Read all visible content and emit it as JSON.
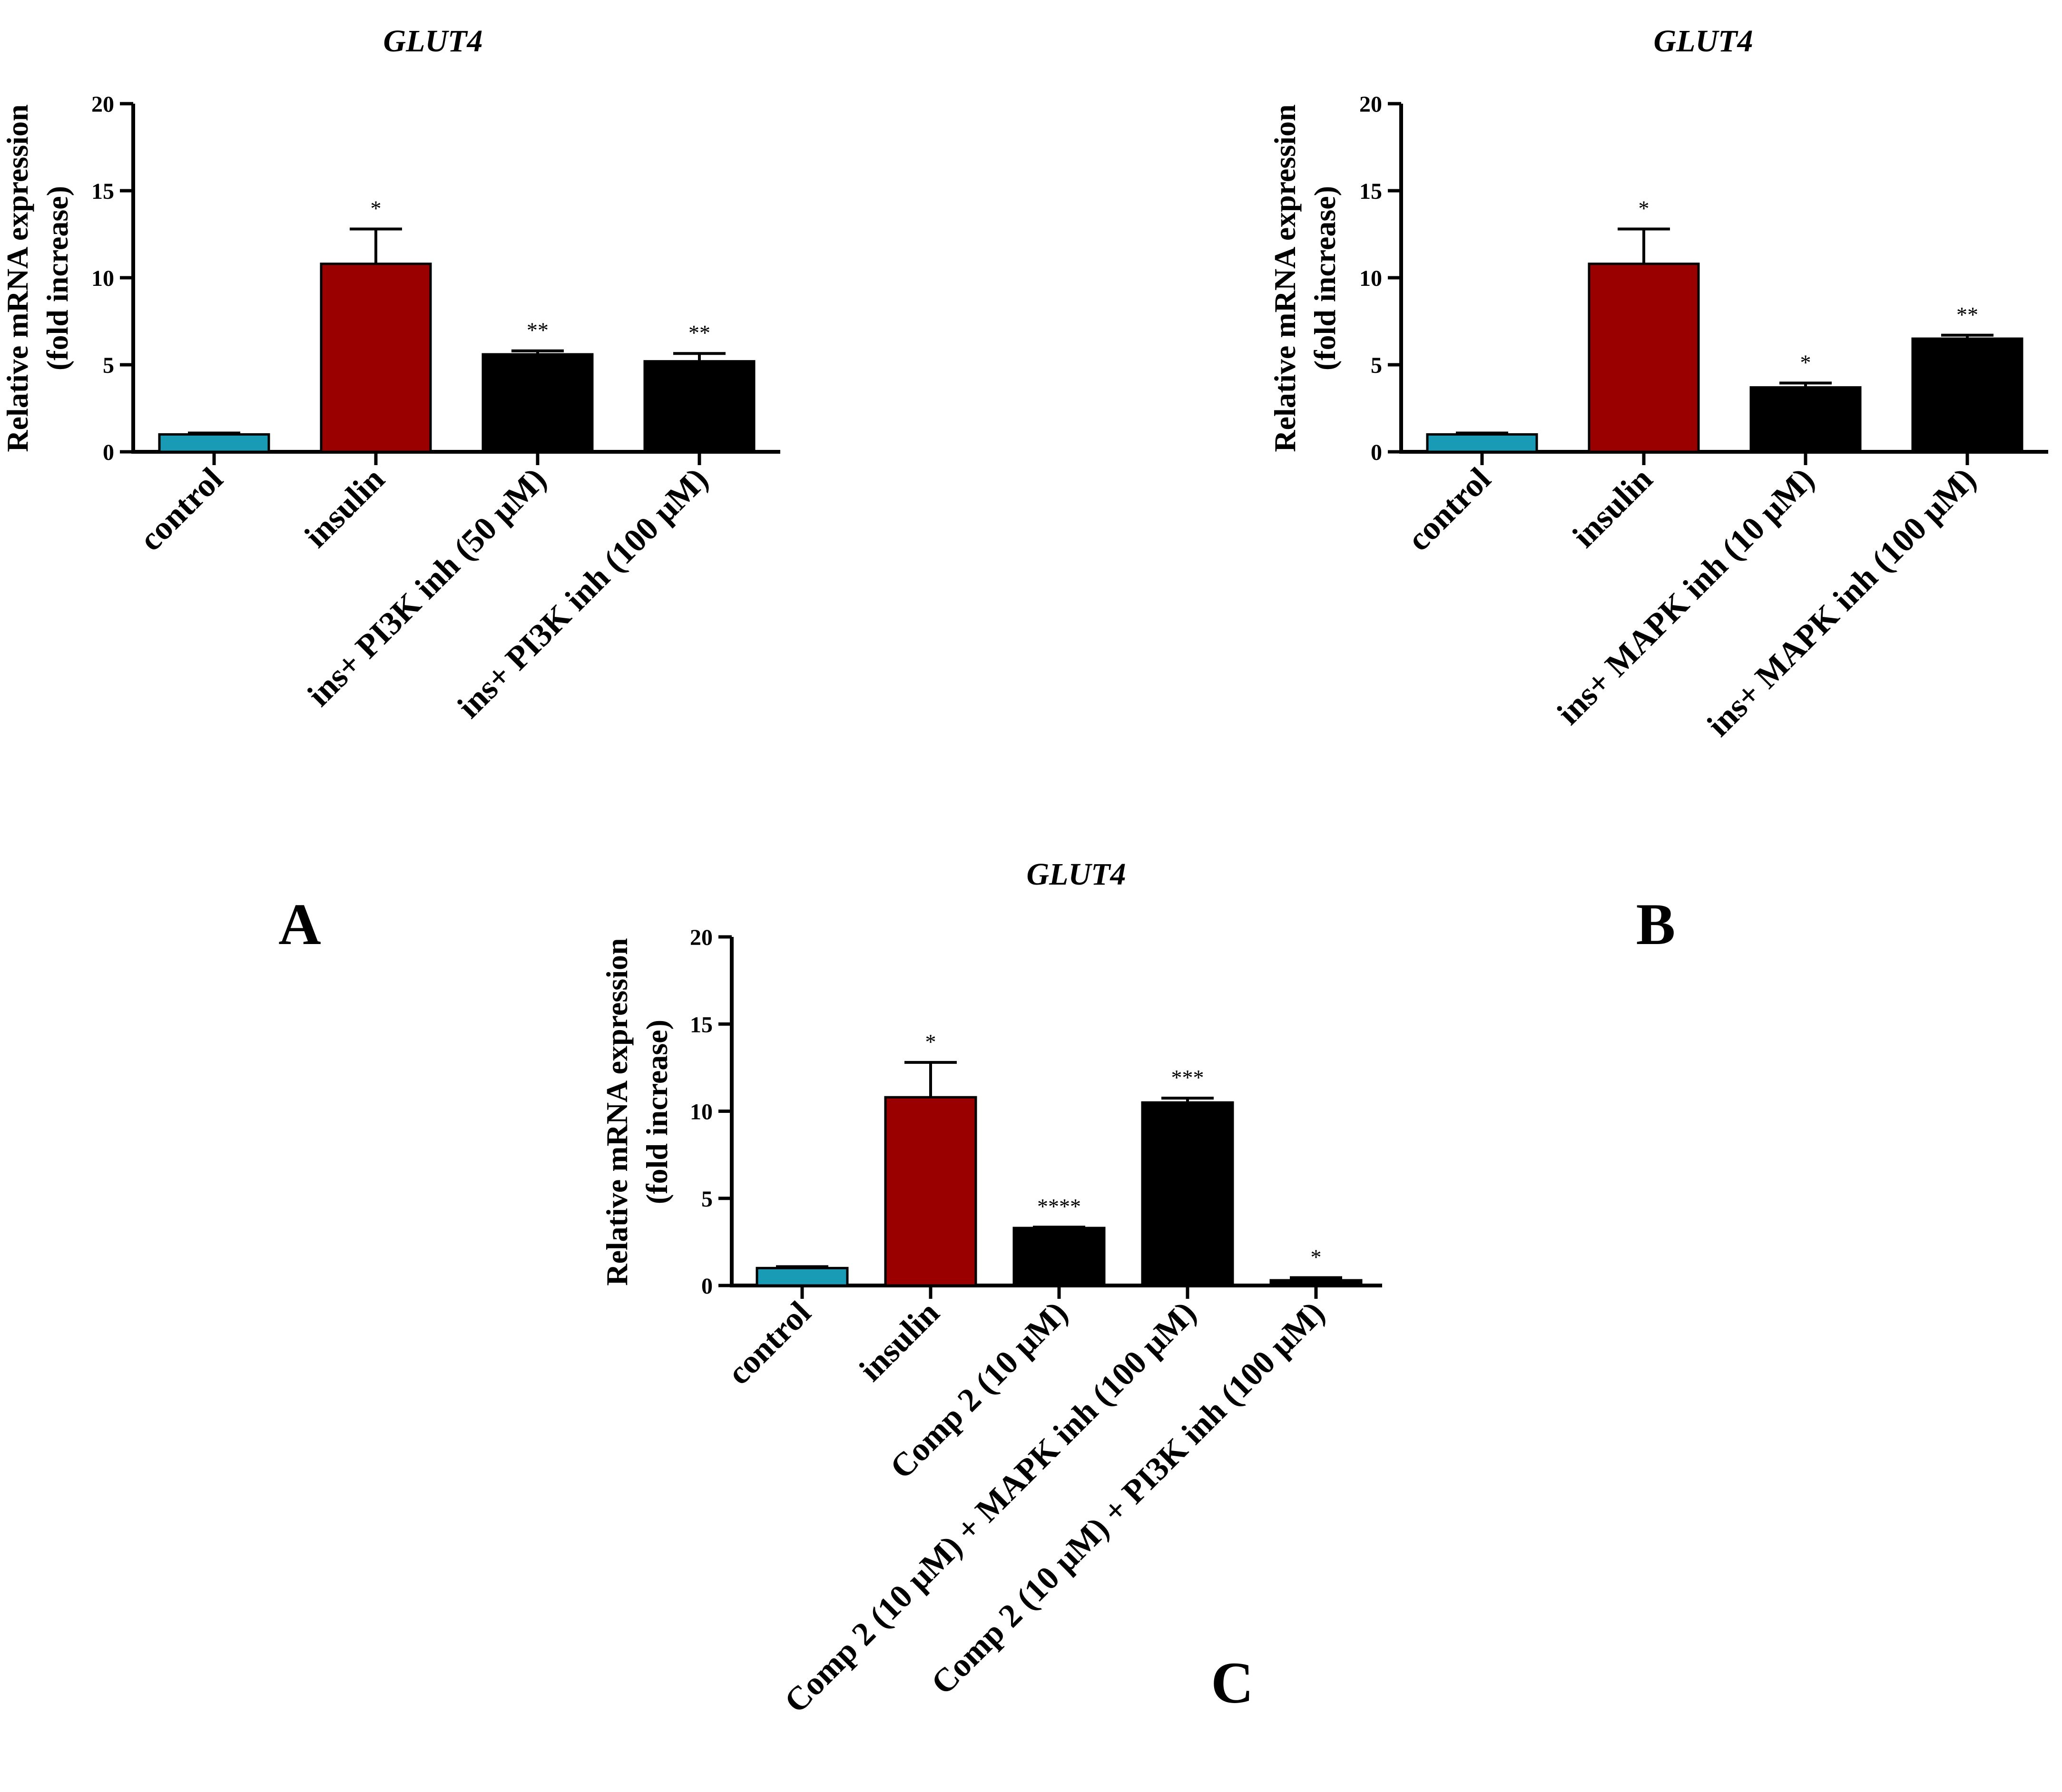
{
  "colors": {
    "control": "#1a9bb5",
    "insulin": "#9b0000",
    "treatment": "#000000",
    "axis": "#000000"
  },
  "chart_data": [
    {
      "type": "bar",
      "panel": "A",
      "title": "GLUT4",
      "ylabel": [
        "Relative mRNA expression",
        "(fold increase)"
      ],
      "xlabel": "",
      "ylim": [
        0,
        20
      ],
      "yticks": [
        "0",
        "5",
        "10",
        "15",
        "20"
      ],
      "categories": [
        "control",
        "insulin",
        "ins+ PI3K inh (50 μM)",
        "ins+ PI3K inh (100 μM)"
      ],
      "values": [
        1.0,
        10.8,
        5.6,
        5.2
      ],
      "errors": [
        0.08,
        2.0,
        0.2,
        0.45
      ],
      "significance": [
        "",
        "*",
        "**",
        "**"
      ],
      "bar_colors": [
        "control",
        "insulin",
        "treatment",
        "treatment"
      ]
    },
    {
      "type": "bar",
      "panel": "B",
      "title": "GLUT4",
      "ylabel": [
        "Relative mRNA expression",
        "(fold increase)"
      ],
      "xlabel": "",
      "ylim": [
        0,
        20
      ],
      "yticks": [
        "0",
        "5",
        "10",
        "15",
        "20"
      ],
      "categories": [
        "control",
        "insulin",
        "ins+ MAPK inh (10 μM)",
        "ins+ MAPK inh (100 μM)"
      ],
      "values": [
        1.0,
        10.8,
        3.7,
        6.5
      ],
      "errors": [
        0.08,
        2.0,
        0.25,
        0.2
      ],
      "significance": [
        "",
        "*",
        "*",
        "**"
      ],
      "bar_colors": [
        "control",
        "insulin",
        "treatment",
        "treatment"
      ]
    },
    {
      "type": "bar",
      "panel": "C",
      "title": "GLUT4",
      "ylabel": [
        "Relative mRNA expression",
        "(fold increase)"
      ],
      "xlabel": "",
      "ylim": [
        0,
        20
      ],
      "yticks": [
        "0",
        "5",
        "10",
        "15",
        "20"
      ],
      "categories": [
        "control",
        "insulin",
        "Comp 2 (10 μM)",
        "Comp 2 (10 μM) + MAPK inh (100 μM)",
        "Comp 2 (10 μM) + PI3K inh (100 μM)"
      ],
      "values": [
        1.0,
        10.8,
        3.3,
        10.5,
        0.3
      ],
      "errors": [
        0.08,
        2.0,
        0.05,
        0.25,
        0.15
      ],
      "significance": [
        "",
        "*",
        "****",
        "***",
        "*"
      ],
      "bar_colors": [
        "control",
        "insulin",
        "treatment",
        "treatment",
        "treatment"
      ]
    }
  ]
}
